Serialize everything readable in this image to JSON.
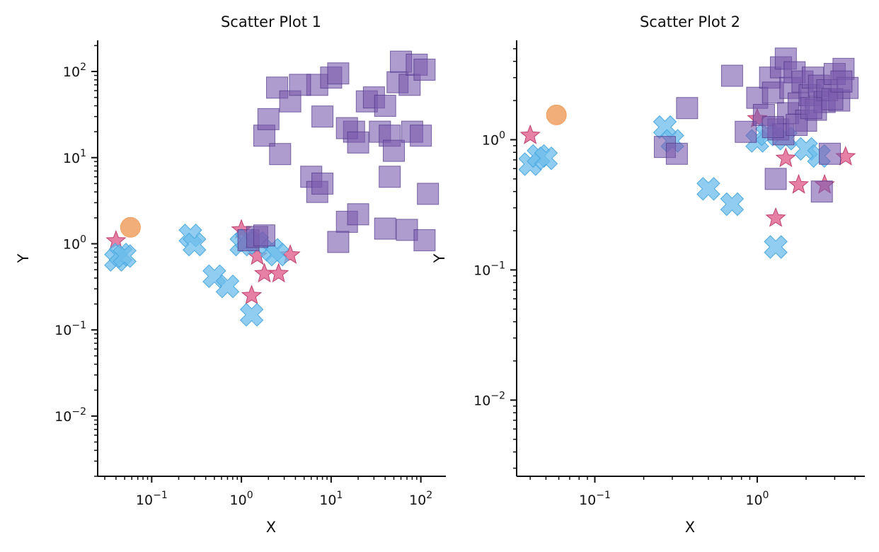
{
  "colors": {
    "circle": "#F0A060",
    "star": "#E0608E",
    "x_marker": "#6CBCEB",
    "square": "#7A5AAE",
    "axis": "#111111"
  },
  "chart_data": [
    {
      "type": "scatter",
      "title": "Scatter Plot 1",
      "xlabel": "X",
      "ylabel": "Y",
      "xscale": "log",
      "yscale": "log",
      "xlim": [
        0.025,
        190
      ],
      "ylim": [
        0.002,
        230
      ],
      "x_ticks": [
        {
          "base": "10",
          "exp": "−1",
          "value": 0.1
        },
        {
          "base": "10",
          "exp": "0",
          "value": 1
        },
        {
          "base": "10",
          "exp": "1",
          "value": 10
        },
        {
          "base": "10",
          "exp": "2",
          "value": 100
        }
      ],
      "y_ticks": [
        {
          "base": "10",
          "exp": "−2",
          "value": 0.01
        },
        {
          "base": "10",
          "exp": "−1",
          "value": 0.1
        },
        {
          "base": "10",
          "exp": "0",
          "value": 1
        },
        {
          "base": "10",
          "exp": "1",
          "value": 10
        },
        {
          "base": "10",
          "exp": "2",
          "value": 100
        }
      ],
      "grid": false,
      "series": [
        {
          "marker": "circle",
          "points": [
            [
              0.058,
              1.55
            ]
          ]
        },
        {
          "marker": "star",
          "points": [
            [
              0.04,
              1.08
            ],
            [
              1.0,
              1.45
            ],
            [
              1.3,
              0.25
            ],
            [
              1.5,
              0.72
            ],
            [
              1.8,
              0.45
            ],
            [
              2.6,
              0.45
            ],
            [
              3.5,
              0.74
            ]
          ]
        },
        {
          "marker": "x",
          "points": [
            [
              0.04,
              0.65
            ],
            [
              0.045,
              0.75
            ],
            [
              0.05,
              0.72
            ],
            [
              0.27,
              1.25
            ],
            [
              0.3,
              0.98
            ],
            [
              0.5,
              0.42
            ],
            [
              0.7,
              0.32
            ],
            [
              1.0,
              0.98
            ],
            [
              1.15,
              1.1
            ],
            [
              1.3,
              0.15
            ],
            [
              1.5,
              1.02
            ],
            [
              2.2,
              0.85
            ],
            [
              2.5,
              0.75
            ]
          ]
        },
        {
          "marker": "square",
          "points": [
            [
              1.2,
              1.1
            ],
            [
              1.5,
              1.2
            ],
            [
              1.8,
              1.25
            ],
            [
              7,
              70
            ],
            [
              10,
              85
            ],
            [
              12,
              95
            ],
            [
              18,
              20
            ],
            [
              25,
              45
            ],
            [
              30,
              50
            ],
            [
              40,
              40
            ],
            [
              55,
              75
            ],
            [
              60,
              130
            ],
            [
              75,
              70
            ],
            [
              90,
              120
            ],
            [
              110,
              105
            ],
            [
              8,
              30
            ],
            [
              15,
              22
            ],
            [
              20,
              15
            ],
            [
              35,
              20
            ],
            [
              45,
              18
            ],
            [
              50,
              12
            ],
            [
              80,
              20
            ],
            [
              100,
              18
            ],
            [
              1.8,
              18
            ],
            [
              2.0,
              28
            ],
            [
              2.5,
              65
            ],
            [
              2.7,
              11
            ],
            [
              3.5,
              45
            ],
            [
              4.5,
              70
            ],
            [
              6,
              6
            ],
            [
              7,
              4
            ],
            [
              8,
              5
            ],
            [
              15,
              1.8
            ],
            [
              20,
              2.2
            ],
            [
              40,
              1.5
            ],
            [
              70,
              1.45
            ],
            [
              12,
              1.05
            ],
            [
              110,
              1.1
            ],
            [
              120,
              3.8
            ],
            [
              45,
              6
            ]
          ]
        }
      ]
    },
    {
      "type": "scatter",
      "title": "Scatter Plot 2",
      "xlabel": "X",
      "ylabel": "Y",
      "xscale": "log",
      "yscale": "log",
      "xlim": [
        0.033,
        4.6
      ],
      "ylim": [
        0.0026,
        5.8
      ],
      "x_ticks": [
        {
          "base": "10",
          "exp": "−1",
          "value": 0.1
        },
        {
          "base": "10",
          "exp": "0",
          "value": 1
        }
      ],
      "y_ticks": [
        {
          "base": "10",
          "exp": "−2",
          "value": 0.01
        },
        {
          "base": "10",
          "exp": "−1",
          "value": 0.1
        },
        {
          "base": "10",
          "exp": "0",
          "value": 1
        }
      ],
      "grid": false,
      "series": [
        {
          "marker": "circle",
          "points": [
            [
              0.058,
              1.55
            ]
          ]
        },
        {
          "marker": "star",
          "points": [
            [
              0.04,
              1.08
            ],
            [
              1.0,
              1.45
            ],
            [
              1.3,
              0.25
            ],
            [
              1.5,
              0.72
            ],
            [
              1.8,
              0.45
            ],
            [
              2.6,
              0.45
            ],
            [
              3.5,
              0.74
            ]
          ]
        },
        {
          "marker": "x",
          "points": [
            [
              0.04,
              0.65
            ],
            [
              0.045,
              0.75
            ],
            [
              0.05,
              0.72
            ],
            [
              0.27,
              1.25
            ],
            [
              0.3,
              0.98
            ],
            [
              0.5,
              0.42
            ],
            [
              0.7,
              0.32
            ],
            [
              1.0,
              0.98
            ],
            [
              1.15,
              1.1
            ],
            [
              1.3,
              0.15
            ],
            [
              1.5,
              1.02
            ],
            [
              2.0,
              0.85
            ],
            [
              2.4,
              0.75
            ]
          ]
        },
        {
          "marker": "square",
          "points": [
            [
              0.27,
              0.88
            ],
            [
              0.32,
              0.78
            ],
            [
              0.37,
              1.75
            ],
            [
              0.7,
              3.1
            ],
            [
              0.85,
              1.15
            ],
            [
              1.0,
              2.1
            ],
            [
              1.1,
              1.55
            ],
            [
              1.2,
              3.0
            ],
            [
              1.25,
              2.3
            ],
            [
              1.3,
              0.5
            ],
            [
              1.35,
              1.2
            ],
            [
              1.4,
              3.6
            ],
            [
              1.5,
              4.2
            ],
            [
              1.55,
              1.6
            ],
            [
              1.6,
              2.5
            ],
            [
              1.7,
              3.3
            ],
            [
              1.8,
              1.9
            ],
            [
              1.9,
              2.8
            ],
            [
              2.0,
              1.4
            ],
            [
              2.1,
              2.2
            ],
            [
              2.2,
              3.0
            ],
            [
              2.3,
              1.7
            ],
            [
              2.4,
              2.6
            ],
            [
              2.5,
              0.4
            ],
            [
              2.6,
              1.95
            ],
            [
              2.7,
              2.4
            ],
            [
              2.8,
              0.78
            ],
            [
              3.0,
              3.2
            ],
            [
              3.2,
              2.0
            ],
            [
              3.4,
              3.5
            ],
            [
              3.6,
              2.5
            ],
            [
              1.45,
              1.1
            ],
            [
              1.75,
              1.3
            ],
            [
              2.15,
              1.75
            ],
            [
              2.9,
              2.05
            ],
            [
              1.25,
              1.25
            ],
            [
              3.3,
              2.8
            ]
          ]
        }
      ]
    }
  ]
}
